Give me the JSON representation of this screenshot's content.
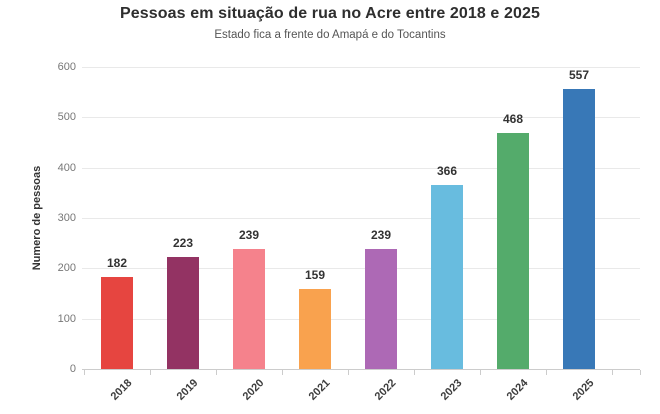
{
  "chart_data": {
    "type": "bar",
    "title": "Pessoas em situação de rua no Acre entre 2018 e 2025",
    "subtitle": "Estado fica a frente do Amapá e do Tocantins",
    "ylabel": "Numero de pessoas",
    "xlabel": "",
    "categories": [
      "2018",
      "2019",
      "2020",
      "2021",
      "2022",
      "2023",
      "2024",
      "2025"
    ],
    "values": [
      182,
      223,
      239,
      159,
      239,
      366,
      468,
      557
    ],
    "bar_colors": [
      "#e64540",
      "#933363",
      "#f5828c",
      "#f9a24e",
      "#ad69b5",
      "#68bcdf",
      "#54ab6b",
      "#3878b7"
    ],
    "yticks": [
      0,
      100,
      200,
      300,
      400,
      500,
      600
    ],
    "ylim": [
      0,
      600
    ],
    "grid": "horizontal",
    "legend": "none",
    "value_labels": true
  },
  "colors": {
    "background": "#ffffff",
    "grid": "#e9e9e9",
    "axis_line": "#cccccc",
    "tick_mark": "#cccccc",
    "y_tick_text": "#777777",
    "x_tick_text": "#3d3d3d",
    "value_label": "#333333",
    "title_text": "#2e2e2e",
    "subtitle_text": "#555555"
  }
}
